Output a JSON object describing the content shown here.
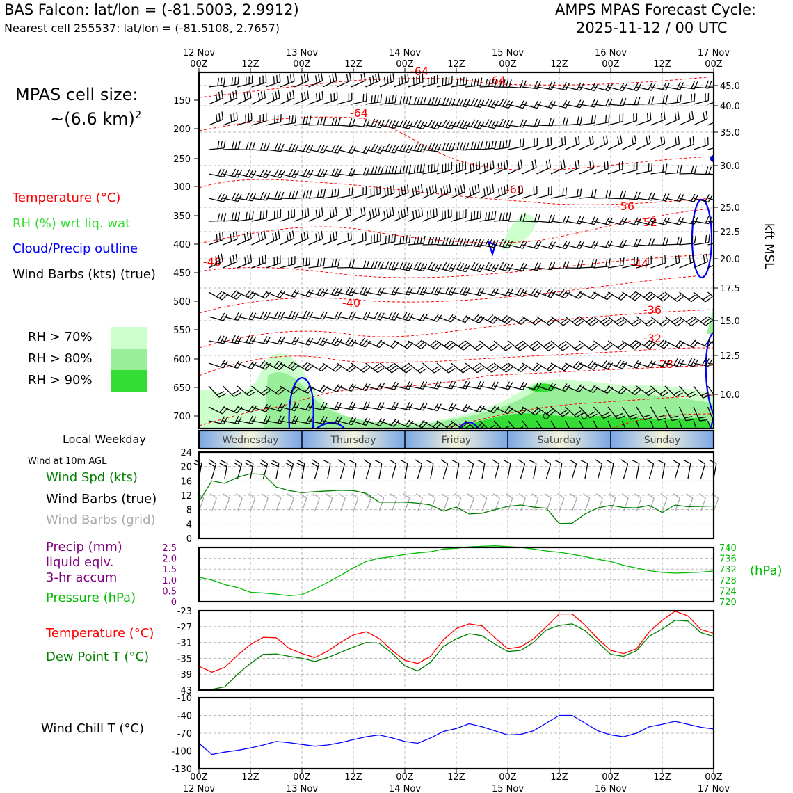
{
  "header": {
    "station_title": "BAS Falcon: lat/lon = (-81.5003, 2.9912)",
    "nearest_cell": "Nearest cell 255537: lat/lon = (-81.5108, 2.7657)",
    "forecast_title": "AMPS MPAS Forecast Cycle:",
    "forecast_cycle": "2025-11-12 / 00 UTC"
  },
  "left_panel": {
    "cell_size_label": "MPAS cell size:",
    "cell_size_value": "~(6.6 km)",
    "cell_size_exp": "2",
    "legend": [
      {
        "text": "Temperature (°C)",
        "color": "#ff0000"
      },
      {
        "text": "RH (%) wrt liq. wat",
        "color": "#33dd33"
      },
      {
        "text": "Cloud/Precip outline",
        "color": "#0000ff"
      },
      {
        "text": "Wind Barbs (kts) (true)",
        "color": "#000000"
      }
    ],
    "rh_legend": [
      {
        "text": "RH > 70%",
        "color": "#ccffcc"
      },
      {
        "text": "RH > 80%",
        "color": "#99ee99"
      },
      {
        "text": "RH > 90%",
        "color": "#33dd33"
      }
    ],
    "local_weekday_label": "Local Weekday",
    "wind_10m_label": "Wind at 10m AGL",
    "wind_legend": [
      {
        "text": "Wind Spd (kts)",
        "color": "#008000"
      },
      {
        "text": "Wind Barbs (true)",
        "color": "#000000"
      },
      {
        "text": "Wind Barbs (grid)",
        "color": "#aaaaaa"
      }
    ],
    "precip_legend": [
      {
        "text": "Precip (mm)",
        "color": "#800080"
      },
      {
        "text": "liquid eqiv.",
        "color": "#800080"
      },
      {
        "text": "3-hr accum",
        "color": "#800080"
      },
      {
        "text": "Pressure (hPa)",
        "color": "#00bb00"
      }
    ],
    "temp_legend": [
      {
        "text": "Temperature (°C)",
        "color": "#ff0000"
      },
      {
        "text": "Dew Point T (°C)",
        "color": "#008000"
      }
    ],
    "windchill_legend": {
      "text": "Wind Chill T (°C)",
      "color": "#0000ff"
    }
  },
  "chart_data": {
    "type": "line",
    "time_axis": {
      "hours": [
        0,
        12,
        24,
        36,
        48,
        60,
        72,
        84,
        96,
        108,
        120
      ],
      "top_labels": [
        [
          "12 Nov",
          "00Z"
        ],
        [
          "",
          "12Z"
        ],
        [
          "13 Nov",
          "00Z"
        ],
        [
          "",
          "12Z"
        ],
        [
          "14 Nov",
          "00Z"
        ],
        [
          "",
          "12Z"
        ],
        [
          "15 Nov",
          "00Z"
        ],
        [
          "",
          "12Z"
        ],
        [
          "16 Nov",
          "00Z"
        ],
        [
          "",
          "12Z"
        ],
        [
          "17 Nov",
          "00Z"
        ]
      ],
      "bottom_labels": [
        [
          "00Z",
          "12 Nov"
        ],
        [
          "12Z",
          ""
        ],
        [
          "00Z",
          "13 Nov"
        ],
        [
          "12Z",
          ""
        ],
        [
          "00Z",
          "14 Nov"
        ],
        [
          "12Z",
          ""
        ],
        [
          "00Z",
          "15 Nov"
        ],
        [
          "12Z",
          ""
        ],
        [
          "00Z",
          "16 Nov"
        ],
        [
          "12Z",
          ""
        ],
        [
          "00Z",
          "17 Nov"
        ]
      ]
    },
    "cross_section": {
      "pressure_ticks": [
        150,
        200,
        250,
        300,
        350,
        400,
        450,
        500,
        550,
        600,
        650,
        700
      ],
      "kft_ticks": [
        "45.0",
        "40.0",
        "35.0",
        "30.0",
        "25.0",
        "22.5",
        "20.0",
        "17.5",
        "15.0",
        "12.5",
        "10.0"
      ],
      "right_axis_label": "kft MSL",
      "temperature_labels": [
        "-64",
        "-64",
        "-64",
        "-60",
        "-56",
        "-52",
        "-48",
        "-44",
        "-40",
        "-36",
        "-32",
        "-28",
        "-24",
        "-24",
        "-32",
        "-32"
      ]
    },
    "weekdays": [
      "Wednesday",
      "Thursday",
      "Friday",
      "Saturday",
      "Sunday"
    ],
    "wind_speed": {
      "y_ticks": [
        0,
        4,
        8,
        12,
        16,
        20,
        24
      ],
      "hours": [
        0,
        3,
        6,
        9,
        12,
        15,
        18,
        21,
        24,
        27,
        30,
        33,
        36,
        39,
        42,
        45,
        48,
        51,
        54,
        57,
        60,
        63,
        66,
        69,
        72,
        75,
        78,
        81,
        84,
        87,
        90,
        93,
        96,
        99,
        102,
        105,
        108,
        111,
        114,
        117,
        120
      ],
      "values": [
        10.2,
        16.0,
        15.3,
        17.0,
        18.0,
        17.8,
        14.3,
        13.3,
        12.7,
        13.0,
        13.2,
        13.4,
        13.3,
        12.5,
        10.1,
        10.1,
        10.1,
        9.8,
        9.3,
        7.6,
        8.7,
        6.8,
        7.0,
        8.0,
        8.9,
        9.3,
        8.7,
        8.4,
        4.1,
        4.2,
        6.8,
        8.5,
        9.2,
        8.6,
        8.5,
        9.2,
        7.2,
        9.3,
        8.8,
        8.9,
        9.0
      ]
    },
    "pressure": {
      "y_ticks": [
        720,
        724,
        728,
        732,
        736,
        740
      ],
      "precip_ticks": [
        "0",
        "0.5",
        "1.0",
        "1.5",
        "2.0",
        "2.5"
      ],
      "unit_label": "(hPa)",
      "hours": [
        0,
        3,
        6,
        9,
        12,
        15,
        18,
        21,
        24,
        27,
        30,
        33,
        36,
        39,
        42,
        45,
        48,
        51,
        54,
        57,
        60,
        63,
        66,
        69,
        72,
        75,
        78,
        81,
        84,
        87,
        90,
        93,
        96,
        99,
        102,
        105,
        108,
        111,
        114,
        117,
        120
      ],
      "values": [
        729.0,
        728.0,
        726.3,
        725.2,
        723.5,
        723.2,
        722.8,
        722.2,
        722.6,
        724.7,
        727.1,
        729.7,
        732.5,
        734.8,
        736.0,
        736.6,
        737.4,
        738.0,
        738.4,
        739.4,
        739.7,
        740.2,
        740.4,
        740.6,
        740.3,
        740.0,
        739.4,
        738.7,
        738.2,
        737.5,
        736.6,
        735.6,
        734.8,
        733.4,
        732.4,
        731.4,
        730.8,
        730.5,
        730.7,
        730.9,
        731.3
      ]
    },
    "temperature": {
      "y_ticks": [
        -43,
        -39,
        -35,
        -31,
        -27,
        -23
      ],
      "hours": [
        0,
        3,
        6,
        9,
        12,
        15,
        18,
        21,
        24,
        27,
        30,
        33,
        36,
        39,
        42,
        45,
        48,
        51,
        54,
        57,
        60,
        63,
        66,
        69,
        72,
        75,
        78,
        81,
        84,
        87,
        90,
        93,
        96,
        99,
        102,
        105,
        108,
        111,
        114,
        117,
        120
      ],
      "temp": [
        -37.0,
        -38.5,
        -37.3,
        -34.2,
        -31.5,
        -29.7,
        -29.8,
        -32.5,
        -33.8,
        -34.8,
        -33.2,
        -31.0,
        -29.1,
        -28.3,
        -30.0,
        -33.0,
        -35.5,
        -36.3,
        -34.5,
        -30.3,
        -27.5,
        -26.3,
        -26.8,
        -29.8,
        -32.6,
        -32.1,
        -30.1,
        -27.0,
        -23.8,
        -23.8,
        -26.6,
        -30.1,
        -33.0,
        -33.8,
        -32.6,
        -28.3,
        -25.4,
        -23.1,
        -24.3,
        -27.7,
        -28.7
      ],
      "dewpoint": [
        -43.0,
        -42.8,
        -42.2,
        -39.0,
        -36.3,
        -34.0,
        -33.9,
        -34.5,
        -35.0,
        -35.8,
        -34.8,
        -33.5,
        -32.2,
        -31.0,
        -31.2,
        -33.7,
        -36.9,
        -38.2,
        -36.0,
        -32.0,
        -30.1,
        -28.8,
        -29.3,
        -31.4,
        -33.3,
        -33.0,
        -31.0,
        -27.8,
        -26.7,
        -26.3,
        -28.0,
        -31.0,
        -34.0,
        -34.5,
        -33.1,
        -29.4,
        -27.6,
        -25.4,
        -25.6,
        -28.5,
        -29.5
      ]
    },
    "wind_chill": {
      "y_ticks": [
        -130,
        -100,
        -70,
        -40,
        -10
      ],
      "hours": [
        0,
        3,
        6,
        9,
        12,
        15,
        18,
        21,
        24,
        27,
        30,
        33,
        36,
        39,
        42,
        45,
        48,
        51,
        54,
        57,
        60,
        63,
        66,
        69,
        72,
        75,
        78,
        81,
        84,
        87,
        90,
        93,
        96,
        99,
        102,
        105,
        108,
        111,
        114,
        117,
        120
      ],
      "values": [
        -87,
        -106,
        -102,
        -99,
        -95,
        -90,
        -84,
        -86,
        -89,
        -92,
        -90,
        -86,
        -81,
        -76,
        -73,
        -78,
        -84,
        -87,
        -78,
        -67,
        -62,
        -54,
        -59,
        -66,
        -73,
        -72,
        -66,
        -53,
        -40,
        -40,
        -53,
        -66,
        -73,
        -76,
        -70,
        -59,
        -55,
        -50,
        -55,
        -60,
        -63
      ]
    }
  }
}
